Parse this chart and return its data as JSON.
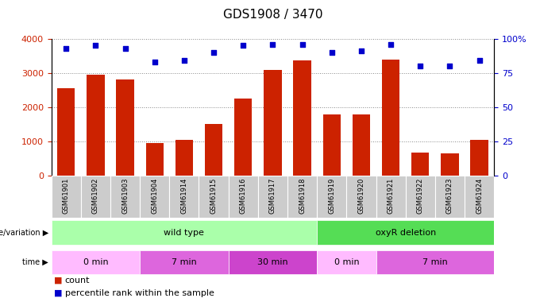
{
  "title": "GDS1908 / 3470",
  "samples": [
    "GSM61901",
    "GSM61902",
    "GSM61903",
    "GSM61904",
    "GSM61914",
    "GSM61915",
    "GSM61916",
    "GSM61917",
    "GSM61918",
    "GSM61919",
    "GSM61920",
    "GSM61921",
    "GSM61922",
    "GSM61923",
    "GSM61924"
  ],
  "counts": [
    2550,
    2950,
    2800,
    950,
    1050,
    1520,
    2250,
    3100,
    3370,
    1800,
    1800,
    3380,
    680,
    650,
    1040
  ],
  "percentiles": [
    93,
    95,
    93,
    83,
    84,
    90,
    95,
    96,
    96,
    90,
    91,
    96,
    80,
    80,
    84
  ],
  "bar_color": "#cc2200",
  "dot_color": "#0000cc",
  "ylim_left": [
    0,
    4000
  ],
  "ylim_right": [
    0,
    100
  ],
  "yticks_left": [
    0,
    1000,
    2000,
    3000,
    4000
  ],
  "yticks_right": [
    0,
    25,
    50,
    75,
    100
  ],
  "grid_color": "#888888",
  "tick_fontsize": 8,
  "title_fontsize": 11,
  "annot_fontsize": 8,
  "legend_fontsize": 8,
  "sample_fontsize": 6,
  "wt_color": "#aaffaa",
  "oxyr_color": "#55dd55",
  "time_0min_color": "#ffbbff",
  "time_7min_color": "#dd66dd",
  "time_30min_color": "#cc44cc",
  "sample_box_color": "#cccccc"
}
